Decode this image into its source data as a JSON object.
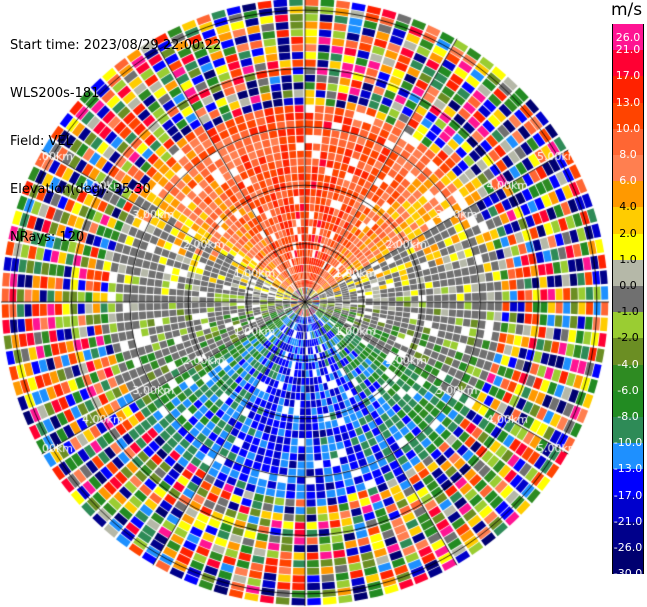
{
  "header": {
    "start_time": "Start time: 2023/08/29 22:00:22",
    "instrument": "WLS200s-181",
    "field": "Field: VEL",
    "elevation": "Elevation(deg): 35.30",
    "nrays": "NRays: 120"
  },
  "colorbar": {
    "unit": "m/s",
    "ticks": [
      "26.0",
      "21.0",
      "17.0",
      "13.0",
      "10.0",
      "8.0",
      "6.0",
      "4.0",
      "2.0",
      "1.0",
      "0.0",
      "-1.0",
      "-2.0",
      "-4.0",
      "-6.0",
      "-8.0",
      "-10.0",
      "-13.0",
      "-17.0",
      "-21.0",
      "-26.0",
      "-30.0"
    ],
    "colors": [
      "#ff1493",
      "#ff0033",
      "#ff2200",
      "#ff4400",
      "#ff6633",
      "#ff7f50",
      "#ff9900",
      "#ffcc00",
      "#ffff00",
      "#b5b8a8",
      "#707070",
      "#9acd32",
      "#6b8e23",
      "#2e8b22",
      "#228b22",
      "#2e8b57",
      "#1e90ff",
      "#0000ff",
      "#0000cd",
      "#00008b",
      "#000070"
    ]
  },
  "chart_data": {
    "type": "ppi",
    "field": "VEL",
    "range_rings_km": [
      1.0,
      2.0,
      3.0,
      4.0,
      5.0
    ],
    "range_ring_labels": [
      "1.00km",
      "2.00km",
      "3.00km",
      "4.00km",
      "5.00km"
    ],
    "near_field_pattern": {
      "north": "positive ~2 to 6 m/s (yellow/orange)",
      "south": "negative ~-4 to -10 m/s (green/blue)",
      "east_west": "near zero (gray)"
    },
    "far_field_pattern": "noise (random colors beyond ~3.5 km)"
  }
}
